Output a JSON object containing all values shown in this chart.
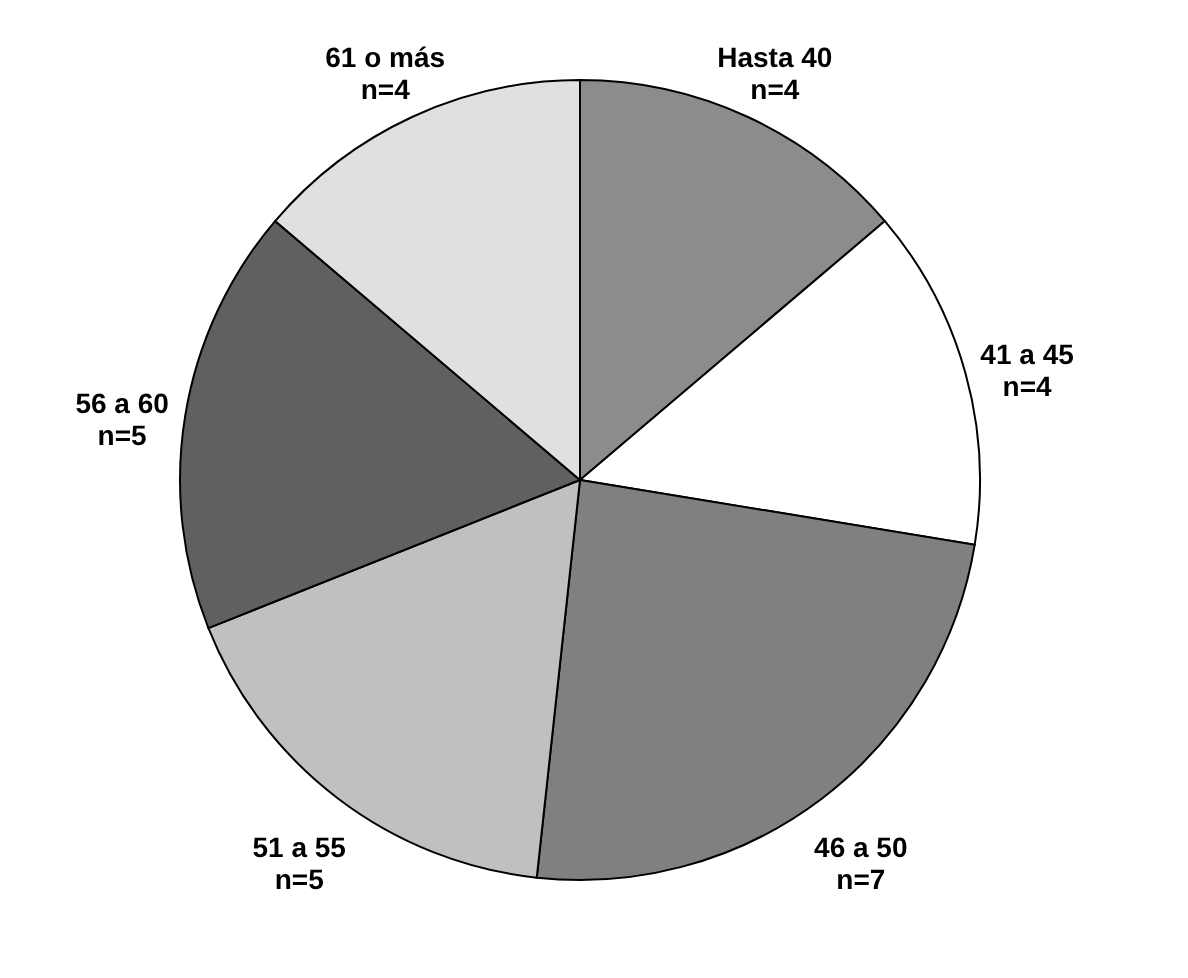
{
  "chart_data": {
    "type": "pie",
    "categories": [
      "Hasta 40",
      "41 a 45",
      "46 a 50",
      "51 a 55",
      "56 a 60",
      "61 o más"
    ],
    "values": [
      4,
      4,
      7,
      5,
      5,
      4
    ],
    "value_labels": [
      "n=4",
      "n=4",
      "n=7",
      "n=5",
      "n=5",
      "n=4"
    ],
    "colors": [
      "#8c8c8c",
      "#ffffff",
      "#808080",
      "#c0c0c0",
      "#606060",
      "#e0e0e0"
    ],
    "legend": false
  }
}
